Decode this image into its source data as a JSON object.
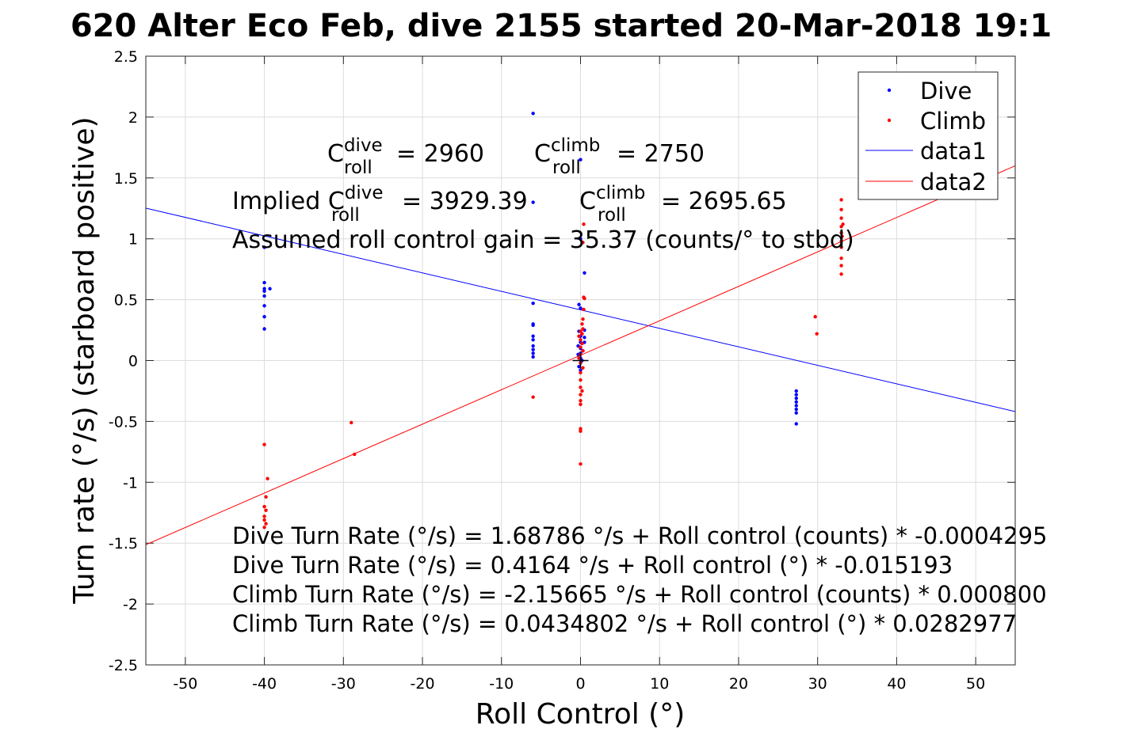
{
  "chart_data": {
    "type": "scatter",
    "title": "620 Alter Eco Feb, dive 2155 started 20-Mar-2018 19:1",
    "xlabel": "Roll Control (°)",
    "ylabel": "Turn rate (°/s) (starboard positive)",
    "xlim": [
      -55,
      55
    ],
    "ylim": [
      -2.5,
      2.5
    ],
    "xticks": [
      -50,
      -40,
      -30,
      -20,
      -10,
      0,
      10,
      20,
      30,
      40,
      50
    ],
    "yticks": [
      -2.5,
      -2,
      -1.5,
      -1,
      -0.5,
      0,
      0.5,
      1,
      1.5,
      2,
      2.5
    ],
    "grid": true,
    "legend_position": "top-right",
    "colors": {
      "dive": "#0000ff",
      "climb": "#ff0000",
      "fit_dive": "#0000ff",
      "fit_climb": "#ff0000"
    },
    "series": [
      {
        "name": "Dive",
        "kind": "points",
        "points": [
          [
            -40,
            0.93
          ],
          [
            -40,
            0.64
          ],
          [
            -40,
            0.59
          ],
          [
            -40,
            0.57
          ],
          [
            -39.3,
            0.59
          ],
          [
            -40,
            0.53
          ],
          [
            -40,
            0.45
          ],
          [
            -40,
            0.36
          ],
          [
            -40,
            0.26
          ],
          [
            -6,
            2.03
          ],
          [
            -6,
            1.3
          ],
          [
            -6,
            0.47
          ],
          [
            -6,
            0.3
          ],
          [
            -6,
            0.29
          ],
          [
            -6,
            0.2
          ],
          [
            -6,
            0.17
          ],
          [
            -6,
            0.12
          ],
          [
            -6,
            0.09
          ],
          [
            -6,
            0.06
          ],
          [
            -6,
            0.03
          ],
          [
            0,
            1.65
          ],
          [
            0,
            1.0
          ],
          [
            0.5,
            0.72
          ],
          [
            -0.2,
            0.46
          ],
          [
            0,
            0.43
          ],
          [
            0.5,
            0.25
          ],
          [
            0.5,
            0.19
          ],
          [
            0.5,
            0.15
          ],
          [
            -0.2,
            0.24
          ],
          [
            0,
            0.2
          ],
          [
            0,
            0.15
          ],
          [
            -0.3,
            0.12
          ],
          [
            0,
            0.1
          ],
          [
            0.3,
            0.08
          ],
          [
            0,
            0.06
          ],
          [
            -0.3,
            0.05
          ],
          [
            0,
            0.02
          ],
          [
            0.2,
            0.0
          ],
          [
            0,
            -0.02
          ],
          [
            -0.2,
            -0.05
          ],
          [
            0,
            -0.08
          ],
          [
            27.3,
            -0.25
          ],
          [
            27.3,
            -0.28
          ],
          [
            27.3,
            -0.31
          ],
          [
            27.3,
            -0.34
          ],
          [
            27.3,
            -0.37
          ],
          [
            27.3,
            -0.4
          ],
          [
            27.3,
            -0.43
          ],
          [
            27.3,
            -0.52
          ]
        ]
      },
      {
        "name": "Climb",
        "kind": "points",
        "points": [
          [
            -40,
            -0.69
          ],
          [
            -39.6,
            -0.97
          ],
          [
            -39.8,
            -1.12
          ],
          [
            -40,
            -1.2
          ],
          [
            -39.8,
            -1.23
          ],
          [
            -40,
            -1.28
          ],
          [
            -40,
            -1.31
          ],
          [
            -39.8,
            -1.34
          ],
          [
            -40,
            -1.37
          ],
          [
            -29,
            -0.51
          ],
          [
            -28.6,
            -0.77
          ],
          [
            -6,
            -0.3
          ],
          [
            0.4,
            1.12
          ],
          [
            0.3,
            0.97
          ],
          [
            0.4,
            0.52
          ],
          [
            0.5,
            0.51
          ],
          [
            0.4,
            0.42
          ],
          [
            0.3,
            0.34
          ],
          [
            0.2,
            0.3
          ],
          [
            0.3,
            0.26
          ],
          [
            0,
            0.24
          ],
          [
            0.2,
            0.22
          ],
          [
            -0.2,
            0.2
          ],
          [
            0,
            0.17
          ],
          [
            0.2,
            0.14
          ],
          [
            0,
            0.11
          ],
          [
            0.3,
            0.08
          ],
          [
            0,
            0.05
          ],
          [
            -0.2,
            0.02
          ],
          [
            0,
            -0.02
          ],
          [
            0.3,
            -0.06
          ],
          [
            0,
            -0.1
          ],
          [
            0,
            -0.16
          ],
          [
            0,
            -0.22
          ],
          [
            0.2,
            -0.25
          ],
          [
            0,
            -0.28
          ],
          [
            0,
            -0.33
          ],
          [
            0,
            -0.36
          ],
          [
            0,
            -0.56
          ],
          [
            0,
            -0.58
          ],
          [
            0,
            -0.85
          ],
          [
            29.7,
            0.36
          ],
          [
            29.9,
            0.22
          ],
          [
            33,
            1.32
          ],
          [
            33,
            1.24
          ],
          [
            33,
            1.17
          ],
          [
            33.2,
            1.12
          ],
          [
            33,
            1.1
          ],
          [
            33,
            1.05
          ],
          [
            33.1,
            1.02
          ],
          [
            33,
            0.98
          ],
          [
            33,
            0.93
          ],
          [
            33,
            0.84
          ],
          [
            33,
            0.78
          ],
          [
            33,
            0.71
          ]
        ]
      },
      {
        "name": "data1",
        "kind": "line",
        "points": [
          [
            -55,
            1.2521
          ],
          [
            55,
            -0.4192
          ]
        ]
      },
      {
        "name": "data2",
        "kind": "line",
        "points": [
          [
            -55,
            -1.5129
          ],
          [
            55,
            1.5998
          ]
        ]
      }
    ],
    "origin_marker": [
      0,
      0
    ],
    "annotations": {
      "c_dive_base": "C",
      "c_dive_sup": "dive",
      "c_dive_sub": "roll",
      "c_dive_value": "= 2960",
      "c_climb_base": "C",
      "c_climb_sup": "climb",
      "c_climb_sub": "roll",
      "c_climb_value": "= 2750",
      "implied_prefix": "Implied C",
      "implied_dive_sup": "dive",
      "implied_dive_sub": "roll",
      "implied_dive_value": "= 3929.39",
      "implied_climb_base": "C",
      "implied_climb_sup": "climb",
      "implied_climb_sub": "roll",
      "implied_climb_value": "= 2695.65",
      "gain": "Assumed roll control gain = 35.37 (counts/° to stbd)",
      "eq1": "Dive Turn Rate (°/s) = 1.68786 °/s + Roll control (counts) * -0.0004295",
      "eq2": "Dive Turn Rate (°/s) = 0.4164 °/s + Roll control (°) * -0.015193",
      "eq3": "Climb Turn Rate (°/s) = -2.15665 °/s + Roll control (counts) * 0.000800",
      "eq4": "Climb Turn Rate (°/s) = 0.0434802 °/s + Roll control (°) * 0.0282977"
    }
  }
}
